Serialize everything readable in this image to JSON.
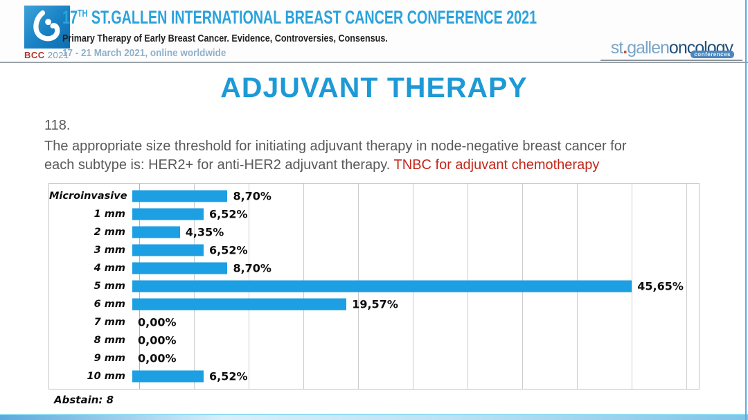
{
  "header": {
    "logo": {
      "bcc": "BCC",
      "year": "2021"
    },
    "title_num": "17",
    "title_sup": "TH",
    "title_rest": " ST.GALLEN INTERNATIONAL BREAST CANCER CONFERENCE 2021",
    "subtitle": "Primary Therapy of Early Breast Cancer. Evidence, Controversies, Consensus.",
    "date": "17 - 21 March 2021, online worldwide",
    "brand": {
      "part1": "st",
      "dot": ".",
      "part2": "gallen",
      "part3": "oncology",
      "badge": "conferences"
    }
  },
  "slide": {
    "title": "ADJUVANT THERAPY",
    "question_number": "118.",
    "question_line1": "The appropriate size threshold for initiating adjuvant therapy in node-negative breast cancer for",
    "question_line2_gray": "each subtype is: HER2+ for anti-HER2 adjuvant therapy. ",
    "question_line2_red": "TNBC for adjuvant chemotherapy",
    "abstain": "Abstain: 8"
  },
  "chart_data": {
    "type": "bar",
    "orientation": "horizontal",
    "title": "",
    "xlabel": "",
    "ylabel": "",
    "categories": [
      "Microinvasive",
      "1 mm",
      "2 mm",
      "3 mm",
      "4 mm",
      "5 mm",
      "6 mm",
      "7 mm",
      "8 mm",
      "9 mm",
      "10 mm"
    ],
    "values": [
      8.7,
      6.52,
      4.35,
      6.52,
      8.7,
      45.65,
      19.57,
      0.0,
      0.0,
      0.0,
      6.52
    ],
    "value_labels": [
      "8,70%",
      "6,52%",
      "4,35%",
      "6,52%",
      "8,70%",
      "45,65%",
      "19,57%",
      "0,00%",
      "0,00%",
      "0,00%",
      "6,52%"
    ],
    "xlim": [
      0,
      50
    ],
    "gridline_interval": 5,
    "grid": true,
    "legend": false,
    "bar_color": "#1c9fe3"
  },
  "colors": {
    "header_title_blue": "#2aa3dc",
    "main_title_blue": "#1c9ad6",
    "question_gray": "#595959",
    "question_red": "#c3271b",
    "bar_blue": "#1c9fe3",
    "bottom_strip_blue": "#7fc4e8"
  }
}
